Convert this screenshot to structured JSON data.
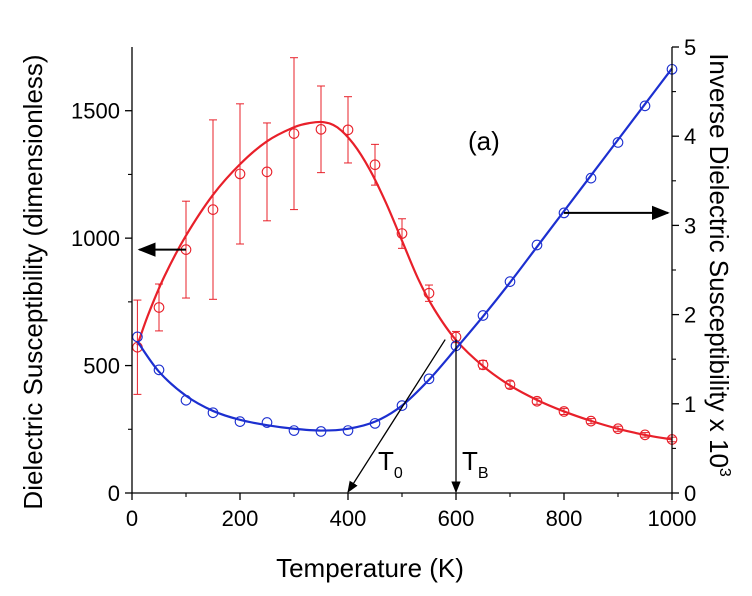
{
  "chart_data": {
    "type": "scatter",
    "panel_label": "(a)",
    "xlabel": "Temperature (K)",
    "ylabel_left": "Dielectric Susceptibility (dimensionless)",
    "ylabel_right_main": "Inverse Dielectric Susceptibility x 10",
    "ylabel_right_exp": "3",
    "xlim": [
      0,
      1000
    ],
    "ylim_left": [
      0,
      1750
    ],
    "ylim_right": [
      0,
      5
    ],
    "x_ticks": [
      {
        "value": 0,
        "label": "0"
      },
      {
        "value": 200,
        "label": "200"
      },
      {
        "value": 400,
        "label": "400"
      },
      {
        "value": 600,
        "label": "600"
      },
      {
        "value": 800,
        "label": "800"
      },
      {
        "value": 1000,
        "label": "1000"
      }
    ],
    "y_left_ticks": [
      {
        "value": 0,
        "label": "0"
      },
      {
        "value": 500,
        "label": "500"
      },
      {
        "value": 1000,
        "label": "1000"
      },
      {
        "value": 1500,
        "label": "1500"
      }
    ],
    "y_right_ticks": [
      {
        "value": 0,
        "label": "0"
      },
      {
        "value": 1,
        "label": "1"
      },
      {
        "value": 2,
        "label": "2"
      },
      {
        "value": 3,
        "label": "3"
      },
      {
        "value": 4,
        "label": "4"
      },
      {
        "value": 5,
        "label": "5"
      }
    ],
    "series": [
      {
        "name": "Dielectric Susceptibility",
        "axis": "left",
        "color": "#e8202a",
        "x": [
          10,
          50,
          100,
          150,
          200,
          250,
          300,
          350,
          400,
          450,
          500,
          550,
          600,
          650,
          700,
          750,
          800,
          850,
          900,
          950,
          1000
        ],
        "y": [
          572,
          728,
          955,
          1112,
          1252,
          1260,
          1410,
          1427,
          1425,
          1288,
          1018,
          784,
          612,
          503,
          425,
          360,
          320,
          282,
          252,
          228,
          210
        ],
        "err": [
          185,
          92,
          190,
          352,
          275,
          192,
          298,
          170,
          130,
          80,
          58,
          32,
          22,
          17,
          14,
          12,
          12,
          10,
          10,
          9,
          9
        ],
        "fit_x": [
          10,
          30,
          60,
          100,
          150,
          200,
          250,
          300,
          330,
          355,
          380,
          410,
          440,
          470,
          500,
          530,
          560,
          600,
          650,
          700,
          750,
          800,
          850,
          900,
          950,
          1000
        ],
        "fit_y": [
          580,
          700,
          850,
          1010,
          1170,
          1290,
          1380,
          1435,
          1452,
          1455,
          1435,
          1370,
          1270,
          1140,
          990,
          840,
          720,
          600,
          498,
          422,
          365,
          320,
          283,
          252,
          228,
          210
        ]
      },
      {
        "name": "Inverse Dielectric Susceptibility",
        "axis": "right",
        "color": "#1c2fd0",
        "x": [
          10,
          50,
          100,
          150,
          200,
          250,
          300,
          350,
          400,
          450,
          500,
          550,
          600,
          650,
          700,
          750,
          800,
          850,
          900,
          950,
          1000
        ],
        "y": [
          1.75,
          1.38,
          1.04,
          0.9,
          0.8,
          0.79,
          0.7,
          0.69,
          0.7,
          0.78,
          0.98,
          1.28,
          1.65,
          1.99,
          2.37,
          2.78,
          3.14,
          3.53,
          3.93,
          4.34,
          4.75
        ],
        "fit_x": [
          10,
          50,
          100,
          150,
          200,
          250,
          300,
          350,
          400,
          450,
          500,
          550,
          600,
          650,
          700,
          750,
          800,
          850,
          900,
          950,
          1000
        ],
        "fit_y": [
          1.7,
          1.36,
          1.09,
          0.92,
          0.82,
          0.76,
          0.72,
          0.7,
          0.72,
          0.8,
          0.98,
          1.27,
          1.62,
          1.98,
          2.36,
          2.76,
          3.16,
          3.56,
          3.96,
          4.36,
          4.76
        ]
      }
    ],
    "annotations": [
      {
        "text": "T",
        "sub": "0",
        "value_K": 400
      },
      {
        "text": "T",
        "sub": "B",
        "value_K": 600
      }
    ],
    "colors": {
      "axis": "#000000",
      "red": "#e8202a",
      "blue": "#1c2fd0"
    }
  }
}
